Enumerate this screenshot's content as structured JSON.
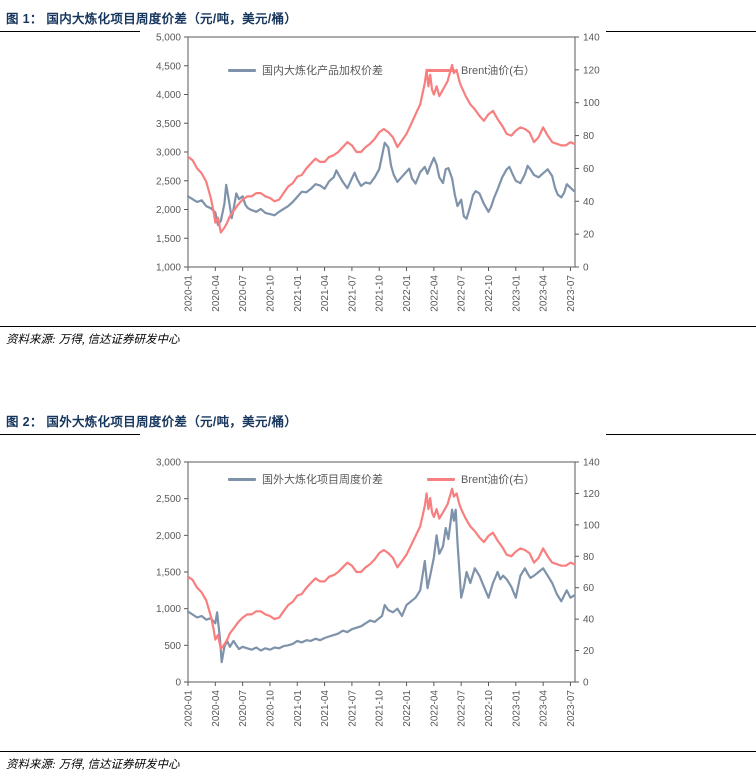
{
  "colors": {
    "title_text": "#17365d",
    "rule_line": "#000000",
    "axis_text": "#595959",
    "plot_border": "#808080",
    "spread_line": "#7e92aa",
    "brent_line": "#f87f7f"
  },
  "figures": [
    {
      "title": "图 1： 国内大炼化项目周度价差（元/吨，美元/桶）",
      "source": "资料来源: 万得, 信达证券研发中心"
    },
    {
      "title": "图 2： 国外大炼化项目周度价差（元/吨，美元/桶）",
      "source": "资料来源: 万得, 信达证券研发中心"
    }
  ],
  "chart_data": [
    {
      "type": "line",
      "title": "国内大炼化项目周度价差（元/吨，美元/桶）",
      "grid": false,
      "legend_position": "top-center",
      "x_unit": "months since 2020-01",
      "x_range": [
        0,
        42.5
      ],
      "x_ticks": {
        "positions": [
          0,
          3,
          6,
          9,
          12,
          15,
          18,
          21,
          24,
          27,
          30,
          33,
          36,
          39,
          42
        ],
        "labels": [
          "2020-01",
          "2020-04",
          "2020-07",
          "2020-10",
          "2021-01",
          "2021-04",
          "2021-07",
          "2021-10",
          "2022-01",
          "2022-04",
          "2022-07",
          "2022-10",
          "2023-01",
          "2023-04",
          "2023-07"
        ]
      },
      "left_axis": {
        "range": [
          1000,
          5000
        ],
        "tick_values": [
          1000,
          1500,
          2000,
          2500,
          3000,
          3500,
          4000,
          4500,
          5000
        ],
        "tick_labels": [
          "1,000",
          "1,500",
          "2,000",
          "2,500",
          "3,000",
          "3,500",
          "4,000",
          "4,500",
          "5,000"
        ]
      },
      "right_axis": {
        "range": [
          0,
          140
        ],
        "tick_values": [
          0,
          20,
          40,
          60,
          80,
          100,
          120,
          140
        ],
        "tick_labels": [
          "0",
          "20",
          "40",
          "60",
          "80",
          "100",
          "120",
          "140"
        ]
      },
      "series": [
        {
          "name": "国内大炼化产品加权价差",
          "axis": "left",
          "color": "#7e92aa",
          "x": [
            0,
            0.5,
            1,
            1.5,
            2,
            2.5,
            3,
            3.3,
            3.6,
            4,
            4.2,
            4.5,
            4.8,
            5,
            5.3,
            5.6,
            6,
            6.3,
            6.6,
            7,
            7.5,
            8,
            8.5,
            9,
            9.5,
            10,
            10.5,
            11,
            11.5,
            12,
            12.5,
            13,
            13.5,
            14,
            14.5,
            15,
            15.5,
            16,
            16.3,
            16.6,
            17,
            17.5,
            18,
            18.3,
            18.6,
            19,
            19.5,
            20,
            20.5,
            21,
            21.3,
            21.6,
            22,
            22.3,
            22.6,
            23,
            23.5,
            24,
            24.3,
            24.6,
            25,
            25.5,
            26,
            26.3,
            26.6,
            27,
            27.3,
            27.6,
            28,
            28.3,
            28.6,
            29,
            29.3,
            29.6,
            30,
            30.3,
            30.6,
            31,
            31.3,
            31.6,
            32,
            32.5,
            33,
            33.3,
            33.6,
            34,
            34.5,
            35,
            35.3,
            35.6,
            36,
            36.5,
            37,
            37.3,
            37.6,
            38,
            38.5,
            39,
            39.5,
            40,
            40.3,
            40.6,
            41,
            41.3,
            41.6,
            42,
            42.4
          ],
          "y": [
            2230,
            2180,
            2130,
            2160,
            2060,
            2020,
            1950,
            1730,
            1800,
            2100,
            2430,
            2150,
            1850,
            2000,
            2280,
            2180,
            2230,
            2080,
            2020,
            1990,
            1960,
            2010,
            1940,
            1920,
            1900,
            1960,
            2010,
            2060,
            2130,
            2220,
            2310,
            2300,
            2360,
            2440,
            2420,
            2360,
            2490,
            2560,
            2680,
            2590,
            2480,
            2370,
            2540,
            2640,
            2520,
            2410,
            2470,
            2450,
            2560,
            2700,
            2930,
            3160,
            3080,
            2760,
            2600,
            2480,
            2570,
            2660,
            2710,
            2540,
            2450,
            2650,
            2740,
            2620,
            2750,
            2900,
            2780,
            2560,
            2460,
            2700,
            2720,
            2540,
            2260,
            2060,
            2170,
            1880,
            1840,
            2060,
            2250,
            2320,
            2280,
            2100,
            1960,
            2050,
            2200,
            2350,
            2560,
            2700,
            2740,
            2630,
            2500,
            2460,
            2610,
            2760,
            2700,
            2600,
            2560,
            2630,
            2700,
            2580,
            2380,
            2260,
            2210,
            2290,
            2440,
            2380,
            2320
          ]
        },
        {
          "name": "Brent油价(右）",
          "axis": "right",
          "color": "#f87f7f",
          "x": [
            0,
            0.5,
            1,
            1.5,
            2,
            2.5,
            2.8,
            3,
            3.3,
            3.6,
            4,
            4.3,
            4.6,
            5,
            5.5,
            6,
            6.5,
            7,
            7.5,
            8,
            8.5,
            9,
            9.5,
            10,
            10.5,
            11,
            11.5,
            12,
            12.5,
            13,
            13.5,
            14,
            14.5,
            15,
            15.5,
            16,
            16.5,
            17,
            17.5,
            18,
            18.5,
            19,
            19.5,
            20,
            20.5,
            21,
            21.5,
            22,
            22.5,
            23,
            23.5,
            24,
            24.5,
            25,
            25.5,
            26,
            26.2,
            26.4,
            26.6,
            26.8,
            27,
            27.3,
            27.6,
            28,
            28.5,
            29,
            29.2,
            29.5,
            29.8,
            30,
            30.5,
            31,
            31.5,
            32,
            32.5,
            33,
            33.5,
            34,
            34.5,
            35,
            35.5,
            36,
            36.5,
            37,
            37.5,
            38,
            38.5,
            39,
            39.5,
            40,
            40.5,
            41,
            41.5,
            42,
            42.4
          ],
          "y": [
            67,
            65,
            60,
            57,
            52,
            42,
            34,
            27,
            30,
            21,
            24,
            27,
            31,
            34,
            38,
            41,
            43,
            43,
            45,
            45,
            43,
            42,
            40,
            41,
            45,
            49,
            51,
            55,
            56,
            60,
            63,
            66,
            64,
            64,
            67,
            68,
            70,
            73,
            76,
            74,
            70,
            70,
            73,
            75,
            78,
            82,
            84,
            82,
            79,
            73,
            77,
            81,
            87,
            93,
            99,
            112,
            120,
            110,
            117,
            108,
            105,
            110,
            104,
            108,
            113,
            123,
            118,
            120,
            113,
            110,
            104,
            99,
            96,
            92,
            89,
            93,
            95,
            90,
            86,
            81,
            80,
            83,
            85,
            84,
            82,
            76,
            79,
            85,
            80,
            76,
            75,
            74,
            74,
            76,
            75
          ]
        }
      ]
    },
    {
      "type": "line",
      "title": "国外大炼化项目周度价差（元/吨，美元/桶）",
      "grid": false,
      "legend_position": "top-center",
      "x_unit": "months since 2020-01",
      "x_range": [
        0,
        42.5
      ],
      "x_ticks": {
        "positions": [
          0,
          3,
          6,
          9,
          12,
          15,
          18,
          21,
          24,
          27,
          30,
          33,
          36,
          39,
          42
        ],
        "labels": [
          "2020-01",
          "2020-04",
          "2020-07",
          "2020-10",
          "2021-01",
          "2021-04",
          "2021-07",
          "2021-10",
          "2022-01",
          "2022-04",
          "2022-07",
          "2022-10",
          "2023-01",
          "2023-04",
          "2023-07"
        ]
      },
      "left_axis": {
        "range": [
          0,
          3000
        ],
        "tick_values": [
          0,
          500,
          1000,
          1500,
          2000,
          2500,
          3000
        ],
        "tick_labels": [
          "0",
          "500",
          "1,000",
          "1,500",
          "2,000",
          "2,500",
          "3,000"
        ]
      },
      "right_axis": {
        "range": [
          0,
          140
        ],
        "tick_values": [
          0,
          20,
          40,
          60,
          80,
          100,
          120,
          140
        ],
        "tick_labels": [
          "0",
          "20",
          "40",
          "60",
          "80",
          "100",
          "120",
          "140"
        ]
      },
      "series": [
        {
          "name": "国外大炼化项目周度价差",
          "axis": "left",
          "color": "#7e92aa",
          "x": [
            0,
            0.5,
            1,
            1.5,
            2,
            2.5,
            3,
            3.2,
            3.5,
            3.7,
            4,
            4.3,
            4.6,
            5,
            5.3,
            5.6,
            6,
            6.5,
            7,
            7.5,
            8,
            8.5,
            9,
            9.5,
            10,
            10.5,
            11,
            11.5,
            12,
            12.5,
            13,
            13.5,
            14,
            14.5,
            15,
            15.5,
            16,
            16.5,
            17,
            17.5,
            18,
            18.5,
            19,
            19.5,
            20,
            20.5,
            21,
            21.3,
            21.6,
            22,
            22.5,
            23,
            23.5,
            24,
            24.5,
            25,
            25.5,
            26,
            26.3,
            26.6,
            27,
            27.3,
            27.6,
            28,
            28.3,
            28.6,
            29,
            29.2,
            29.4,
            29.6,
            30,
            30.3,
            30.6,
            31,
            31.5,
            32,
            32.5,
            33,
            33.5,
            34,
            34.3,
            34.6,
            35,
            35.5,
            36,
            36.5,
            37,
            37.3,
            37.6,
            38,
            38.5,
            39,
            39.5,
            40,
            40.5,
            41,
            41.3,
            41.6,
            42,
            42.4
          ],
          "y": [
            960,
            920,
            880,
            900,
            850,
            870,
            800,
            950,
            600,
            270,
            480,
            560,
            480,
            560,
            500,
            450,
            480,
            460,
            440,
            470,
            430,
            460,
            440,
            470,
            460,
            490,
            500,
            520,
            560,
            540,
            570,
            560,
            590,
            570,
            600,
            620,
            640,
            660,
            700,
            680,
            720,
            740,
            760,
            800,
            840,
            820,
            870,
            900,
            1050,
            980,
            950,
            1000,
            900,
            1050,
            1100,
            1150,
            1250,
            1650,
            1280,
            1450,
            1700,
            2000,
            1750,
            1850,
            2100,
            1950,
            2350,
            2200,
            2350,
            1900,
            1150,
            1300,
            1500,
            1350,
            1550,
            1450,
            1300,
            1150,
            1350,
            1500,
            1400,
            1450,
            1400,
            1300,
            1150,
            1450,
            1550,
            1480,
            1420,
            1450,
            1500,
            1550,
            1450,
            1350,
            1200,
            1100,
            1180,
            1250,
            1150,
            1180
          ]
        },
        {
          "name": "Brent油价(右）",
          "axis": "right",
          "color": "#f87f7f",
          "x": [
            0,
            0.5,
            1,
            1.5,
            2,
            2.5,
            2.8,
            3,
            3.3,
            3.6,
            4,
            4.3,
            4.6,
            5,
            5.5,
            6,
            6.5,
            7,
            7.5,
            8,
            8.5,
            9,
            9.5,
            10,
            10.5,
            11,
            11.5,
            12,
            12.5,
            13,
            13.5,
            14,
            14.5,
            15,
            15.5,
            16,
            16.5,
            17,
            17.5,
            18,
            18.5,
            19,
            19.5,
            20,
            20.5,
            21,
            21.5,
            22,
            22.5,
            23,
            23.5,
            24,
            24.5,
            25,
            25.5,
            26,
            26.2,
            26.4,
            26.6,
            26.8,
            27,
            27.3,
            27.6,
            28,
            28.5,
            29,
            29.2,
            29.5,
            29.8,
            30,
            30.5,
            31,
            31.5,
            32,
            32.5,
            33,
            33.5,
            34,
            34.5,
            35,
            35.5,
            36,
            36.5,
            37,
            37.5,
            38,
            38.5,
            39,
            39.5,
            40,
            40.5,
            41,
            41.5,
            42,
            42.4
          ],
          "y": [
            67,
            65,
            60,
            57,
            52,
            42,
            34,
            27,
            30,
            21,
            24,
            27,
            31,
            34,
            38,
            41,
            43,
            43,
            45,
            45,
            43,
            42,
            40,
            41,
            45,
            49,
            51,
            55,
            56,
            60,
            63,
            66,
            64,
            64,
            67,
            68,
            70,
            73,
            76,
            74,
            70,
            70,
            73,
            75,
            78,
            82,
            84,
            82,
            79,
            73,
            77,
            81,
            87,
            93,
            99,
            112,
            120,
            110,
            117,
            108,
            105,
            110,
            104,
            108,
            113,
            123,
            118,
            120,
            113,
            110,
            104,
            99,
            96,
            92,
            89,
            93,
            95,
            90,
            86,
            81,
            80,
            83,
            85,
            84,
            82,
            76,
            79,
            85,
            80,
            76,
            75,
            74,
            74,
            76,
            75
          ]
        }
      ]
    }
  ]
}
